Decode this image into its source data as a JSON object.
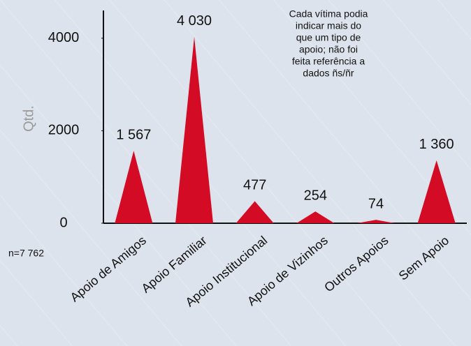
{
  "chart_data": {
    "type": "bar",
    "axis_label": "Qtd.",
    "categories": [
      "Apoio de Amigos",
      "Apoio Familiar",
      "Apoio Institucional",
      "Apoio de Vizinhos",
      "Outros Apoios",
      "Sem Apoio"
    ],
    "values": [
      1567,
      4030,
      477,
      254,
      74,
      1360
    ],
    "value_labels": [
      "1 567",
      "4 030",
      "477",
      "254",
      "74",
      "1 360"
    ],
    "color": "#d40b25",
    "ylim": [
      0,
      4600
    ],
    "yticks": [
      0,
      2000,
      4000
    ],
    "annotation": [
      "Cada vítima podia",
      "indicar mais do",
      "que um tipo de",
      "apoio; não foi",
      "feita referência a",
      "dados ñs/ñr"
    ],
    "note": "n=7 762"
  }
}
